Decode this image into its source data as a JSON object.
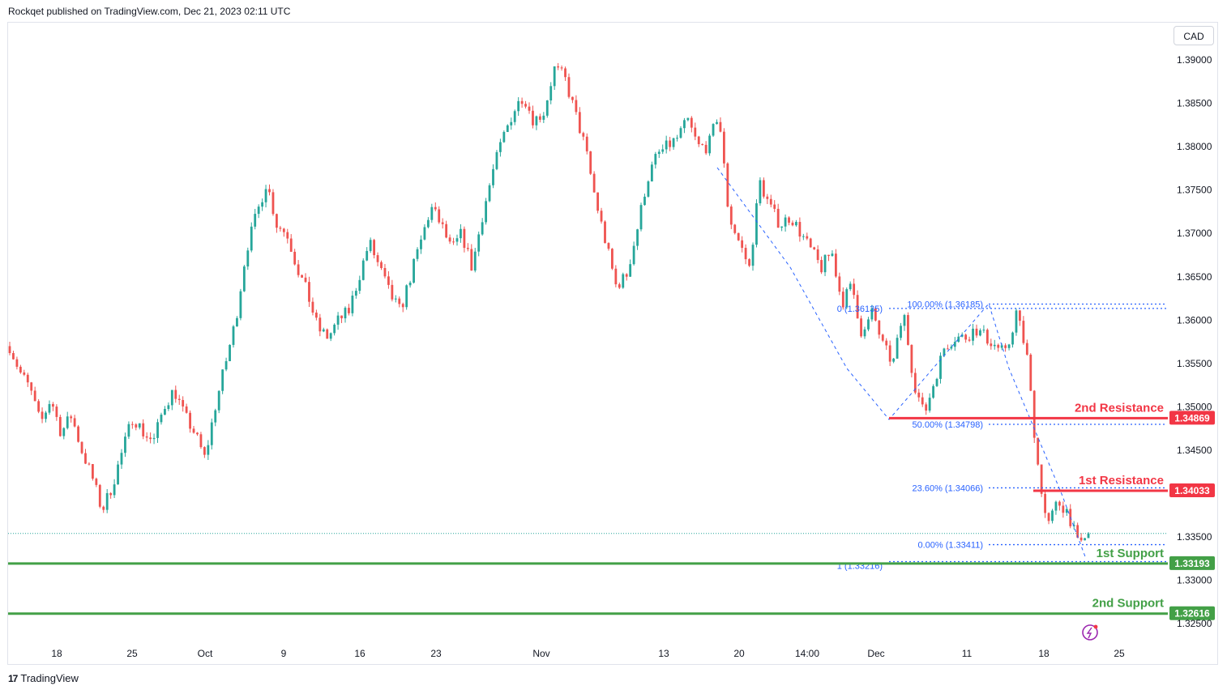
{
  "header": {
    "text": "Rockqet published on TradingView.com, Dec 21, 2023 02:11 UTC"
  },
  "footer": {
    "logo": "17",
    "brand": "TradingView"
  },
  "currency": "CAD",
  "colors": {
    "up": "#26a69a",
    "down": "#ef5350",
    "resistance": "#f23645",
    "support": "#43a047",
    "fib": "#2962ff"
  },
  "chart_data": {
    "type": "candlestick",
    "ylim": [
      1.3217,
      1.3928
    ],
    "y_ticks": [
      "1.39000",
      "1.38500",
      "1.38000",
      "1.37500",
      "1.37000",
      "1.36500",
      "1.36000",
      "1.35500",
      "1.35000",
      "1.34500",
      "1.33500",
      "1.33000",
      "1.32500"
    ],
    "x_ticks": [
      "18",
      "25",
      "Oct",
      "9",
      "16",
      "23",
      "Nov",
      "13",
      "20",
      "14:00",
      "Dec",
      "11",
      "18",
      "25"
    ],
    "levels": [
      {
        "name": "2nd Resistance",
        "value": 1.34869,
        "label": "1.34869",
        "kind": "resistance"
      },
      {
        "name": "1st Resistance",
        "value": 1.34033,
        "label": "1.34033",
        "kind": "resistance"
      },
      {
        "name": "1st Support",
        "value": 1.33193,
        "label": "1.33193",
        "kind": "support"
      },
      {
        "name": "2nd Support",
        "value": 1.32616,
        "label": "1.32616",
        "kind": "support"
      }
    ],
    "fib_levels": [
      {
        "label": "100.00% (1.36185)",
        "value": 1.36185
      },
      {
        "label": "50.00% (1.34798)",
        "value": 1.34798
      },
      {
        "label": "23.60% (1.34066)",
        "value": 1.34066
      },
      {
        "label": "0.00% (1.33411)",
        "value": 1.33411
      }
    ],
    "fib_ext_labels": [
      {
        "label": "0 (1.36135)",
        "value": 1.36135
      },
      {
        "label": "1 (1.33216)",
        "value": 1.33216
      }
    ],
    "last_price": 1.3354,
    "path": [
      1.357,
      1.354,
      1.352,
      1.348,
      1.351,
      1.347,
      1.349,
      1.345,
      1.342,
      1.338,
      1.341,
      1.345,
      1.349,
      1.347,
      1.346,
      1.35,
      1.352,
      1.349,
      1.347,
      1.344,
      1.35,
      1.355,
      1.36,
      1.368,
      1.372,
      1.376,
      1.371,
      1.37,
      1.366,
      1.363,
      1.359,
      1.358,
      1.36,
      1.361,
      1.365,
      1.369,
      1.366,
      1.363,
      1.361,
      1.365,
      1.369,
      1.373,
      1.371,
      1.368,
      1.37,
      1.366,
      1.372,
      1.377,
      1.381,
      1.384,
      1.386,
      1.383,
      1.384,
      1.389,
      1.388,
      1.384,
      1.38,
      1.374,
      1.369,
      1.364,
      1.365,
      1.37,
      1.376,
      1.379,
      1.38,
      1.381,
      1.383,
      1.38,
      1.38,
      1.384,
      1.372,
      1.369,
      1.366,
      1.376,
      1.373,
      1.371,
      1.372,
      1.37,
      1.368,
      1.366,
      1.368,
      1.362,
      1.364,
      1.358,
      1.361,
      1.357,
      1.355,
      1.361,
      1.353,
      1.349,
      1.353,
      1.357,
      1.358,
      1.358,
      1.359,
      1.358,
      1.357,
      1.356,
      1.361,
      1.356,
      1.344,
      1.336,
      1.339,
      1.338,
      1.334,
      1.3354
    ]
  }
}
